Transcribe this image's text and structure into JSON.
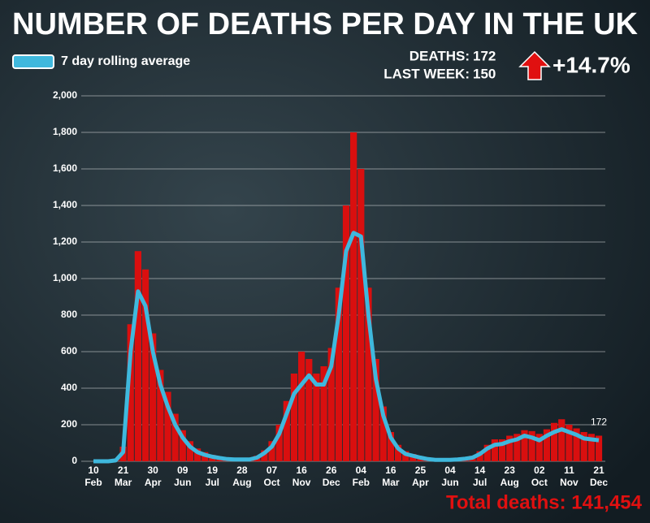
{
  "chart_data": {
    "type": "bar",
    "title": "NUMBER OF DEATHS PER DAY IN THE UK",
    "deaths": {
      "label": "DEATHS:",
      "value": 172
    },
    "last_week": {
      "label": "LAST WEEK:",
      "value": 150
    },
    "change": "+14.7%",
    "total": "Total deaths: 141,454",
    "categories": [
      "10",
      null,
      null,
      null,
      "21",
      null,
      null,
      null,
      "30",
      null,
      null,
      null,
      "09",
      null,
      null,
      null,
      "19",
      null,
      null,
      null,
      "28",
      null,
      null,
      null,
      "07",
      null,
      null,
      null,
      "16",
      null,
      null,
      null,
      "26",
      null,
      null,
      null,
      "04",
      null,
      null,
      null,
      "16",
      null,
      null,
      null,
      "25",
      null,
      null,
      null,
      "04",
      null,
      null,
      null,
      "14",
      null,
      null,
      null,
      "23",
      null,
      null,
      null,
      "02",
      null,
      null,
      null,
      "11",
      null,
      null,
      null,
      "21"
    ],
    "months": [
      "Feb",
      null,
      null,
      null,
      "Mar",
      null,
      null,
      null,
      "Apr",
      null,
      null,
      null,
      "Jun",
      null,
      null,
      null,
      "Jul",
      null,
      null,
      null,
      "Aug",
      null,
      null,
      null,
      "Oct",
      null,
      null,
      null,
      "Nov",
      null,
      null,
      null,
      "Dec",
      null,
      null,
      null,
      "Feb",
      null,
      null,
      null,
      "Mar",
      null,
      null,
      null,
      "Apr",
      null,
      null,
      null,
      "Jun",
      null,
      null,
      null,
      "Jul",
      null,
      null,
      null,
      "Aug",
      null,
      null,
      null,
      "Oct",
      null,
      null,
      null,
      "Nov",
      null,
      null,
      null,
      "Dec"
    ],
    "bars": {
      "color": "#d90f0f",
      "values": [
        0,
        0,
        0,
        10,
        80,
        750,
        1150,
        1050,
        700,
        500,
        380,
        260,
        170,
        110,
        70,
        50,
        35,
        25,
        18,
        14,
        14,
        16,
        30,
        60,
        110,
        200,
        330,
        480,
        600,
        560,
        480,
        520,
        620,
        950,
        1400,
        1800,
        1600,
        950,
        560,
        300,
        160,
        90,
        55,
        40,
        28,
        18,
        12,
        12,
        12,
        14,
        20,
        30,
        55,
        90,
        120,
        120,
        140,
        150,
        170,
        165,
        150,
        175,
        210,
        230,
        200,
        180,
        160,
        150,
        140
      ]
    },
    "series": [
      {
        "name": "7 day rolling average",
        "color": "#3fb8dd",
        "values": [
          0,
          0,
          0,
          5,
          50,
          600,
          930,
          850,
          600,
          420,
          300,
          200,
          130,
          80,
          50,
          35,
          25,
          18,
          12,
          10,
          10,
          10,
          20,
          45,
          80,
          150,
          260,
          370,
          420,
          470,
          420,
          420,
          520,
          800,
          1150,
          1250,
          1230,
          800,
          450,
          250,
          130,
          70,
          40,
          30,
          20,
          12,
          8,
          8,
          8,
          10,
          14,
          20,
          40,
          70,
          90,
          95,
          110,
          120,
          140,
          130,
          115,
          140,
          160,
          175,
          160,
          145,
          125,
          120,
          115
        ]
      }
    ],
    "ylim": [
      0,
      2000
    ],
    "yticks": [
      0,
      200,
      400,
      600,
      800,
      {
        "value": 1000,
        "label": "1,000"
      },
      {
        "value": 1200,
        "label": "1,200"
      },
      {
        "value": 1400,
        "label": "1,400"
      },
      {
        "value": 1600,
        "label": "1,600"
      },
      {
        "value": 1800,
        "label": "1,800"
      },
      {
        "value": 2000,
        "label": "2,000"
      }
    ],
    "grid": true
  }
}
